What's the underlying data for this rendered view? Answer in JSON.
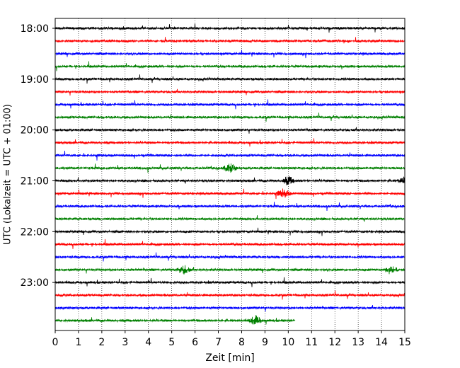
{
  "chart_data": {
    "type": "line",
    "title": "",
    "xlabel": "Zeit  [min]",
    "ylabel": "UTC (Lokalzeit = UTC + 01:00)",
    "xlim": [
      0,
      15
    ],
    "x_ticks": [
      "0",
      "1",
      "2",
      "3",
      "4",
      "5",
      "6",
      "7",
      "8",
      "9",
      "10",
      "11",
      "12",
      "13",
      "14",
      "15"
    ],
    "y_ticks": [
      "18:00",
      "19:00",
      "20:00",
      "21:00",
      "22:00",
      "23:00"
    ],
    "grid": "vertical dotted",
    "trace_interval_min": 15,
    "trace_colors": [
      "#000000",
      "#ff0000",
      "#0000ff",
      "#008000"
    ],
    "traces": [
      {
        "start": "18:00",
        "end_min": 15
      },
      {
        "start": "18:15",
        "end_min": 15
      },
      {
        "start": "18:30",
        "end_min": 15
      },
      {
        "start": "18:45",
        "end_min": 15
      },
      {
        "start": "19:00",
        "end_min": 15
      },
      {
        "start": "19:15",
        "end_min": 15
      },
      {
        "start": "19:30",
        "end_min": 15
      },
      {
        "start": "19:45",
        "end_min": 15
      },
      {
        "start": "20:00",
        "end_min": 15
      },
      {
        "start": "20:15",
        "end_min": 15
      },
      {
        "start": "20:30",
        "end_min": 15
      },
      {
        "start": "20:45",
        "end_min": 15
      },
      {
        "start": "21:00",
        "end_min": 15
      },
      {
        "start": "21:15",
        "end_min": 15
      },
      {
        "start": "21:30",
        "end_min": 15
      },
      {
        "start": "21:45",
        "end_min": 15
      },
      {
        "start": "22:00",
        "end_min": 15
      },
      {
        "start": "22:15",
        "end_min": 15
      },
      {
        "start": "22:30",
        "end_min": 15
      },
      {
        "start": "22:45",
        "end_min": 15
      },
      {
        "start": "23:00",
        "end_min": 15
      },
      {
        "start": "23:15",
        "end_min": 15
      },
      {
        "start": "23:30",
        "end_min": 15
      },
      {
        "start": "23:45",
        "end_min": 10.3
      }
    ],
    "events": [
      {
        "trace": "20:45",
        "x": 7.5
      },
      {
        "trace": "21:00",
        "x": 10.0
      },
      {
        "trace": "21:15",
        "x": 9.8
      },
      {
        "trace": "22:45",
        "x": 5.5
      },
      {
        "trace": "22:45",
        "x": 14.4
      },
      {
        "trace": "23:45",
        "x": 8.6
      },
      {
        "trace": "21:00",
        "x": 15.0
      }
    ]
  }
}
